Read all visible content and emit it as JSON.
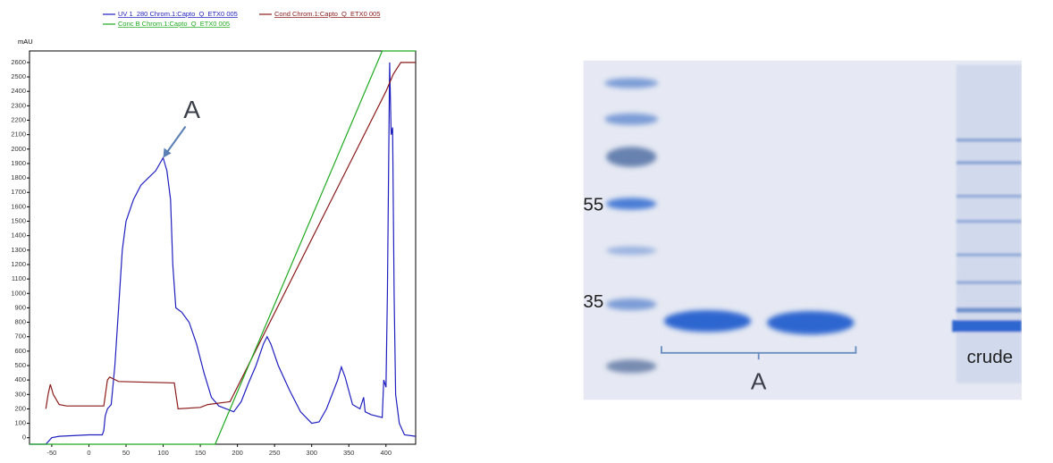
{
  "chart_data": {
    "type": "line",
    "y_label": "mAU",
    "annotation": {
      "text": "A",
      "x": 100,
      "y": 1940
    },
    "xlim": [
      -80,
      440
    ],
    "ylim": [
      -45,
      2680
    ],
    "xticks": [
      -50,
      0,
      50,
      100,
      150,
      200,
      250,
      300,
      350,
      400
    ],
    "yticks": [
      0,
      100,
      200,
      300,
      400,
      500,
      600,
      700,
      800,
      900,
      1000,
      1100,
      1200,
      1300,
      1400,
      1500,
      1600,
      1700,
      1800,
      1900,
      2000,
      2100,
      2200,
      2300,
      2400,
      2500,
      2600
    ],
    "series": [
      {
        "name": "UV 1_280 Chrom.1:Capto_Q_ETX0 005",
        "color": "#1f1fbf",
        "x": [
          -80,
          -58,
          -50,
          -40,
          0,
          18,
          20,
          22,
          25,
          30,
          35,
          40,
          45,
          50,
          60,
          70,
          80,
          90,
          100,
          105,
          110,
          113,
          117,
          125,
          135,
          145,
          155,
          165,
          175,
          185,
          195,
          205,
          215,
          225,
          235,
          240,
          245,
          255,
          270,
          285,
          300,
          310,
          320,
          335,
          340,
          345,
          355,
          365,
          370,
          372,
          380,
          395,
          397,
          400,
          402,
          405,
          407,
          409,
          411,
          413,
          418,
          425,
          440
        ],
        "values": [
          -45,
          -45,
          0,
          10,
          20,
          20,
          50,
          150,
          200,
          230,
          500,
          900,
          1300,
          1500,
          1650,
          1750,
          1800,
          1850,
          1940,
          1850,
          1650,
          1200,
          900,
          870,
          800,
          650,
          450,
          280,
          220,
          200,
          180,
          250,
          380,
          500,
          650,
          700,
          650,
          500,
          330,
          180,
          100,
          110,
          200,
          400,
          490,
          420,
          230,
          200,
          280,
          180,
          160,
          140,
          400,
          350,
          1000,
          2600,
          2100,
          2150,
          1000,
          300,
          100,
          20,
          10
        ]
      },
      {
        "name": "Cond Chrom.1:Capto_Q_ETX0 005",
        "color": "#8b1a1a",
        "x": [
          -58,
          -55,
          -52,
          -48,
          -40,
          -30,
          20,
          25,
          28,
          40,
          115,
          120,
          150,
          160,
          190,
          400,
          410,
          420,
          440
        ],
        "values": [
          200,
          300,
          370,
          300,
          230,
          220,
          220,
          400,
          420,
          390,
          380,
          200,
          210,
          230,
          250,
          2400,
          2520,
          2600,
          2600
        ]
      },
      {
        "name": "Conc B Chrom.1:Capto_Q_ETX0 005",
        "color": "#1faa1f",
        "x": [
          -80,
          170,
          395,
          440
        ],
        "values": [
          -45,
          -45,
          2680,
          2680
        ]
      }
    ]
  },
  "gel": {
    "markers": [
      "55",
      "35"
    ],
    "bracket_label": "A",
    "lane_label": "crude"
  }
}
